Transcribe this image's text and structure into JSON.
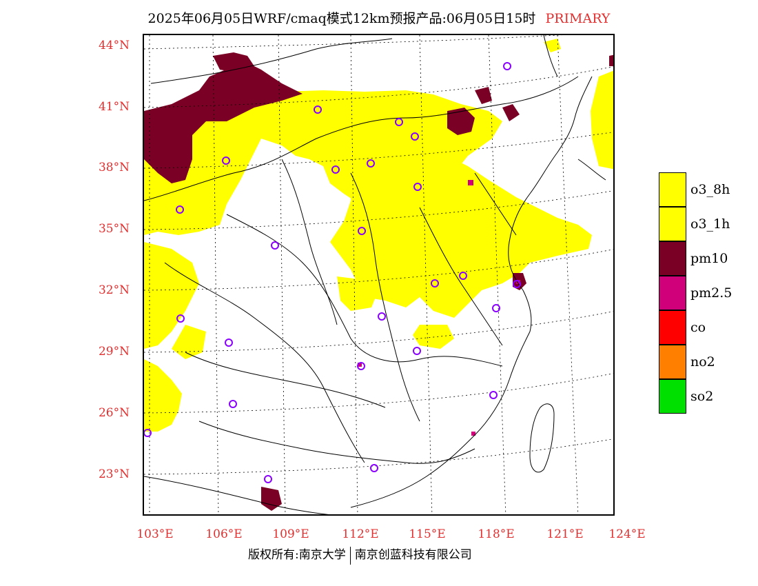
{
  "title": {
    "text": "2025年06月05日WRF/cmaq模式12km预报产品:06月05日15时",
    "tag": "PRIMARY",
    "tag_color": "#e03030"
  },
  "axes": {
    "y_labels": [
      "44°N",
      "41°N",
      "38°N",
      "35°N",
      "32°N",
      "29°N",
      "26°N",
      "23°N"
    ],
    "x_labels": [
      "103°E",
      "106°E",
      "109°E",
      "112°E",
      "115°E",
      "118°E",
      "121°E",
      "124°E"
    ],
    "label_color": "#e03030"
  },
  "legend": [
    {
      "label": "o3_8h",
      "color": "#ffff00"
    },
    {
      "label": "o3_1h",
      "color": "#ffff00"
    },
    {
      "label": "pm10",
      "color": "#7a0026"
    },
    {
      "label": "pm2.5",
      "color": "#d0007a"
    },
    {
      "label": "co",
      "color": "#ff0000"
    },
    {
      "label": "no2",
      "color": "#ff8000"
    },
    {
      "label": "so2",
      "color": "#00e000"
    }
  ],
  "footer": {
    "left": "版权所有:南京大学",
    "right": "南京创蓝科技有限公司"
  },
  "colors": {
    "o3": "#ffff00",
    "pm10": "#7a0026",
    "pm25": "#d0007a",
    "station": "#8a00ff"
  }
}
